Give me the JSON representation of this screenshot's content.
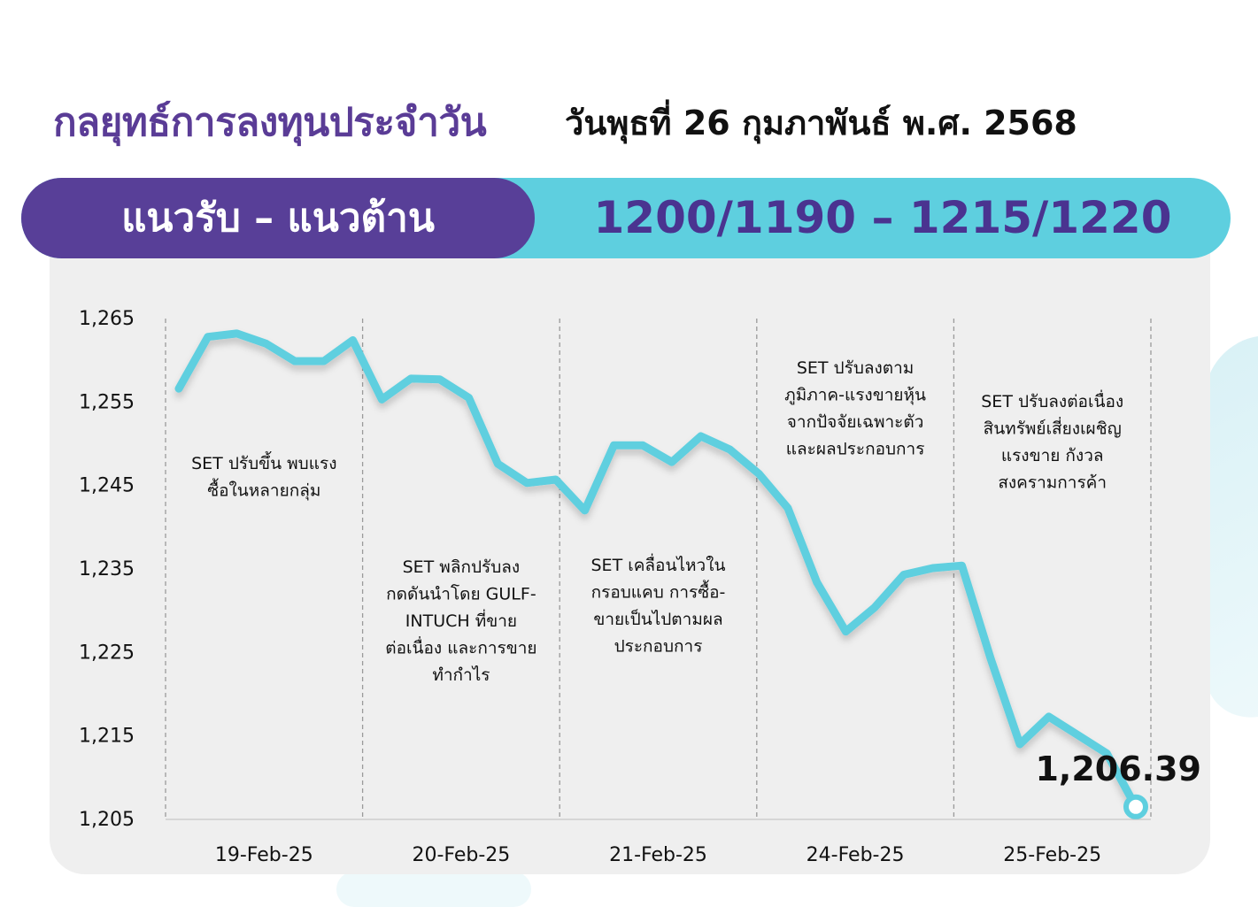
{
  "header": {
    "title": "กลยุทธ์การลงทุนประจำวัน",
    "date": "วันพุธที่ 26 กุมภาพันธ์ พ.ศ. 2568"
  },
  "support_resistance": {
    "label": "แนวรับ – แนวต้าน",
    "value": "1200/1190 – 1215/1220"
  },
  "colors": {
    "purple": "#583f98",
    "cyan": "#5ecfdf",
    "line": "#5ecfdf",
    "panel": "#efefef"
  },
  "chart_data": {
    "type": "line",
    "title": "",
    "xlabel": "",
    "ylabel": "",
    "ylim": [
      1205,
      1265
    ],
    "yticks": [
      "1,265",
      "1,255",
      "1,245",
      "1,235",
      "1,225",
      "1,215",
      "1,205"
    ],
    "ytick_values": [
      1265,
      1255,
      1245,
      1235,
      1225,
      1215,
      1205
    ],
    "days": [
      "19-Feb-25",
      "20-Feb-25",
      "21-Feb-25",
      "24-Feb-25",
      "25-Feb-25"
    ],
    "grid": "vertical dashed separators between days",
    "series": [
      {
        "values": [
          1256.5,
          1262.7,
          1263.1,
          1261.9,
          1259.8,
          1259.8,
          1262.3,
          1255.2,
          1257.7,
          1257.6,
          1255.4,
          1247.5,
          1245.2,
          1245.6,
          1241.9,
          1249.7,
          1249.7,
          1247.7,
          1250.8,
          1249.2,
          1246.3,
          1242.2,
          1233.3,
          1227.4,
          1230.3,
          1234.2,
          1235.0,
          1235.3,
          1224.1,
          1213.9,
          1217.2,
          1215.0,
          1212.8,
          1206.4
        ]
      }
    ],
    "annotations": [
      "SET ปรับขึ้น พบแรง\nซื้อในหลายกลุ่ม",
      "SET พลิกปรับลง\nกดดันนำโดย GULF-\nINTUCH ที่ขาย\nต่อเนื่อง และการขาย\nทำกำไร",
      "SET เคลื่อนไหวใน\nกรอบแคบ การซื้อ-\nขายเป็นไปตามผล\nประกอบการ",
      "SET ปรับลงตาม\nภูมิภาค-แรงขายหุ้น\nจากปัจจัยเฉพาะตัว\nและผลประกอบการ",
      "SET ปรับลงต่อเนื่อง\nสินทรัพย์เสี่ยงเผชิญ\nแรงขาย กังวล\nสงครามการค้า"
    ],
    "last_value_label": "1,206.39"
  }
}
